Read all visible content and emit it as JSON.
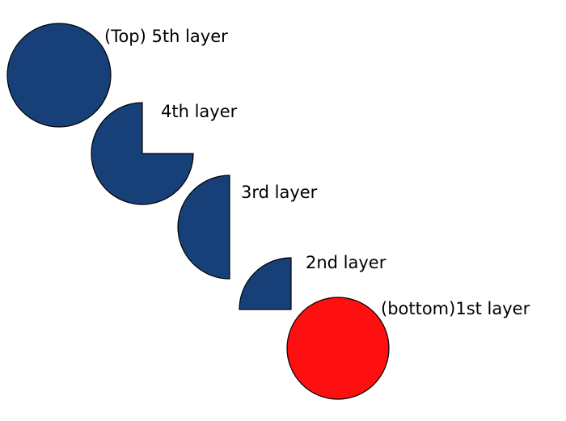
{
  "colors": {
    "layer_fill": "#173f78",
    "bottom_fill": "#ff1010",
    "outline": "#000000"
  },
  "layers": [
    {
      "shape": "full-circle",
      "label": "(Top) 5th layer"
    },
    {
      "shape": "three-quarter-circle",
      "label": "4th layer"
    },
    {
      "shape": "half-circle",
      "label": "3rd layer"
    },
    {
      "shape": "quarter-circle",
      "label": "2nd layer"
    },
    {
      "shape": "full-circle",
      "label": "(bottom)1st layer"
    }
  ]
}
